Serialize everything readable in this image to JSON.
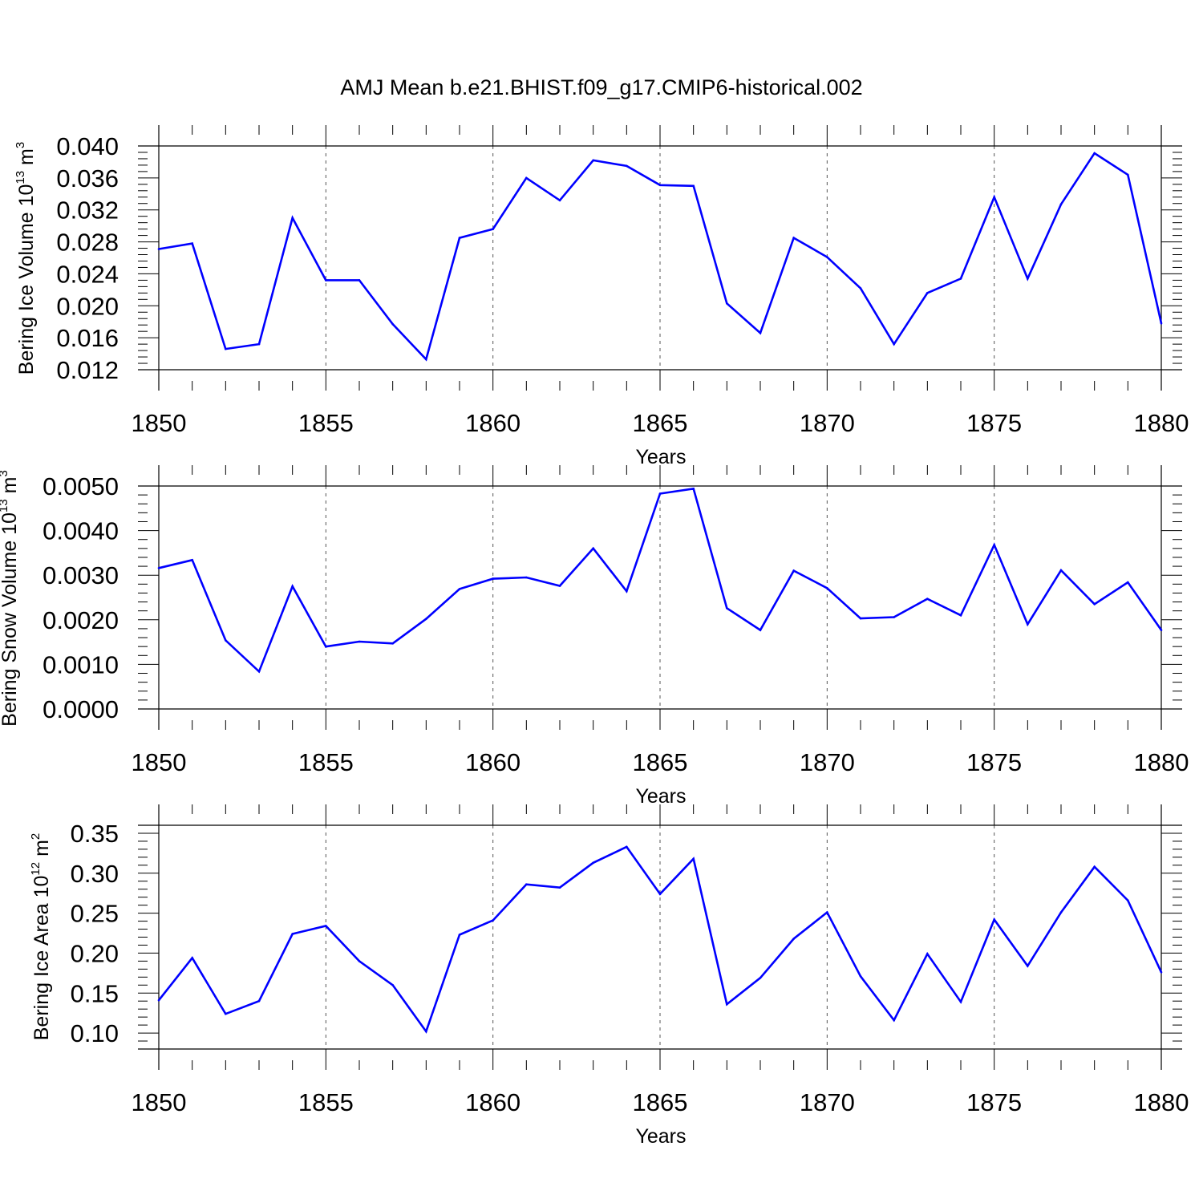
{
  "figure": {
    "title": "AMJ Mean b.e21.BHIST.f09_g17.CMIP6-historical.002"
  },
  "chart_data": [
    {
      "type": "line",
      "xlabel": "Years",
      "ylabel_main": "Bering Ice Volume 10",
      "ylabel_exp": "13",
      "ylabel_unit": " m",
      "ylabel_unit_exp": "3",
      "xlim": [
        1850,
        1880
      ],
      "ylim": [
        0.012,
        0.04
      ],
      "yticks": [
        0.012,
        0.016,
        0.02,
        0.024,
        0.028,
        0.032,
        0.036,
        0.04
      ],
      "ytick_labels": [
        "0.012",
        "0.016",
        "0.020",
        "0.024",
        "0.028",
        "0.032",
        "0.036",
        "0.040"
      ],
      "xticks": [
        1850,
        1855,
        1860,
        1865,
        1870,
        1875,
        1880
      ],
      "xtick_labels": [
        "1850",
        "1855",
        "1860",
        "1865",
        "1870",
        "1875",
        "1880"
      ],
      "color": "#0000ff",
      "x": [
        1850,
        1851,
        1852,
        1853,
        1854,
        1855,
        1856,
        1857,
        1858,
        1859,
        1860,
        1861,
        1862,
        1863,
        1864,
        1865,
        1866,
        1867,
        1868,
        1869,
        1870,
        1871,
        1872,
        1873,
        1874,
        1875,
        1876,
        1877,
        1878,
        1879,
        1880
      ],
      "y": [
        0.0271,
        0.0278,
        0.0146,
        0.0152,
        0.031,
        0.0232,
        0.0232,
        0.0177,
        0.0133,
        0.0285,
        0.0296,
        0.036,
        0.0332,
        0.0382,
        0.0375,
        0.0351,
        0.035,
        0.0203,
        0.0166,
        0.0285,
        0.0261,
        0.0222,
        0.0152,
        0.0216,
        0.0234,
        0.0336,
        0.0234,
        0.0327,
        0.0391,
        0.0364,
        0.0178
      ]
    },
    {
      "type": "line",
      "xlabel": "Years",
      "ylabel_main": "Bering Snow Volume 10",
      "ylabel_exp": "13",
      "ylabel_unit": " m",
      "ylabel_unit_exp": "3",
      "xlim": [
        1850,
        1880
      ],
      "ylim": [
        0.0,
        0.005
      ],
      "yticks": [
        0.0,
        0.001,
        0.002,
        0.003,
        0.004,
        0.005
      ],
      "ytick_labels": [
        "0.0000",
        "0.0010",
        "0.0020",
        "0.0030",
        "0.0040",
        "0.0050"
      ],
      "xticks": [
        1850,
        1855,
        1860,
        1865,
        1870,
        1875,
        1880
      ],
      "xtick_labels": [
        "1850",
        "1855",
        "1860",
        "1865",
        "1870",
        "1875",
        "1880"
      ],
      "color": "#0000ff",
      "x": [
        1850,
        1851,
        1852,
        1853,
        1854,
        1855,
        1856,
        1857,
        1858,
        1859,
        1860,
        1861,
        1862,
        1863,
        1864,
        1865,
        1866,
        1867,
        1868,
        1869,
        1870,
        1871,
        1872,
        1873,
        1874,
        1875,
        1876,
        1877,
        1878,
        1879,
        1880
      ],
      "y": [
        0.00316,
        0.00334,
        0.00154,
        0.00084,
        0.00275,
        0.0014,
        0.00151,
        0.00147,
        0.00202,
        0.00269,
        0.00292,
        0.00295,
        0.00276,
        0.0036,
        0.00264,
        0.00483,
        0.00494,
        0.00226,
        0.00177,
        0.0031,
        0.00271,
        0.00203,
        0.00206,
        0.00247,
        0.0021,
        0.00368,
        0.0019,
        0.00311,
        0.00235,
        0.00284,
        0.00177
      ]
    },
    {
      "type": "line",
      "xlabel": "Years",
      "ylabel_main": "Bering Ice Area 10",
      "ylabel_exp": "12",
      "ylabel_unit": " m",
      "ylabel_unit_exp": "2",
      "xlim": [
        1850,
        1880
      ],
      "ylim": [
        0.08,
        0.36
      ],
      "yticks": [
        0.1,
        0.15,
        0.2,
        0.25,
        0.3,
        0.35
      ],
      "ytick_labels": [
        "0.10",
        "0.15",
        "0.20",
        "0.25",
        "0.30",
        "0.35"
      ],
      "xticks": [
        1850,
        1855,
        1860,
        1865,
        1870,
        1875,
        1880
      ],
      "xtick_labels": [
        "1850",
        "1855",
        "1860",
        "1865",
        "1870",
        "1875",
        "1880"
      ],
      "color": "#0000ff",
      "x": [
        1850,
        1851,
        1852,
        1853,
        1854,
        1855,
        1856,
        1857,
        1858,
        1859,
        1860,
        1861,
        1862,
        1863,
        1864,
        1865,
        1866,
        1867,
        1868,
        1869,
        1870,
        1871,
        1872,
        1873,
        1874,
        1875,
        1876,
        1877,
        1878,
        1879,
        1880
      ],
      "y": [
        0.141,
        0.194,
        0.124,
        0.14,
        0.224,
        0.234,
        0.19,
        0.16,
        0.102,
        0.223,
        0.241,
        0.286,
        0.282,
        0.313,
        0.333,
        0.274,
        0.318,
        0.136,
        0.169,
        0.218,
        0.251,
        0.171,
        0.116,
        0.199,
        0.139,
        0.242,
        0.184,
        0.251,
        0.308,
        0.266,
        0.176
      ]
    }
  ]
}
